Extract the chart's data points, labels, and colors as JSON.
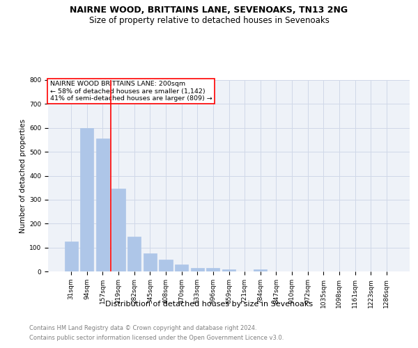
{
  "title": "NAIRNE WOOD, BRITTAINS LANE, SEVENOAKS, TN13 2NG",
  "subtitle": "Size of property relative to detached houses in Sevenoaks",
  "xlabel": "Distribution of detached houses by size in Sevenoaks",
  "ylabel": "Number of detached properties",
  "categories": [
    "31sqm",
    "94sqm",
    "157sqm",
    "219sqm",
    "282sqm",
    "345sqm",
    "408sqm",
    "470sqm",
    "533sqm",
    "596sqm",
    "659sqm",
    "721sqm",
    "784sqm",
    "847sqm",
    "910sqm",
    "972sqm",
    "1035sqm",
    "1098sqm",
    "1161sqm",
    "1223sqm",
    "1286sqm"
  ],
  "values": [
    125,
    600,
    555,
    345,
    145,
    75,
    50,
    30,
    15,
    15,
    10,
    0,
    8,
    0,
    0,
    0,
    0,
    0,
    0,
    0,
    0
  ],
  "bar_color": "#aec6e8",
  "bar_edgecolor": "#aec6e8",
  "vline_x": 2.5,
  "vline_color": "red",
  "annotation_text": "NAIRNE WOOD BRITTAINS LANE: 200sqm\n← 58% of detached houses are smaller (1,142)\n41% of semi-detached houses are larger (809) →",
  "annotation_box_color": "red",
  "annotation_facecolor": "white",
  "ylim": [
    0,
    800
  ],
  "yticks": [
    0,
    100,
    200,
    300,
    400,
    500,
    600,
    700,
    800
  ],
  "grid_color": "#d0d8e8",
  "background_color": "#eef2f8",
  "footer_line1": "Contains HM Land Registry data © Crown copyright and database right 2024.",
  "footer_line2": "Contains public sector information licensed under the Open Government Licence v3.0.",
  "title_fontsize": 9,
  "subtitle_fontsize": 8.5,
  "footer_fontsize": 6.0,
  "tick_fontsize": 6.5,
  "ylabel_fontsize": 7.5,
  "xlabel_fontsize": 8,
  "annotation_fontsize": 6.8
}
